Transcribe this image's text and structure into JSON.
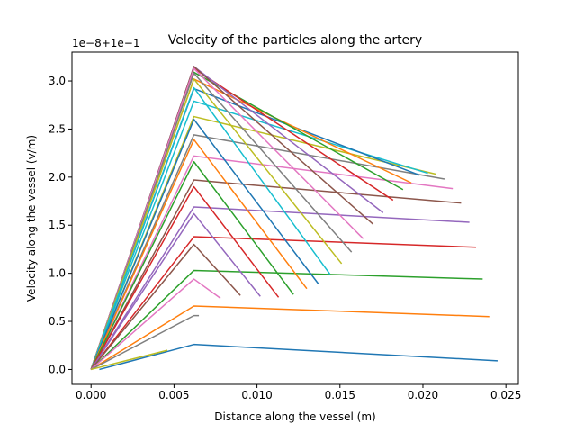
{
  "chart_data": {
    "type": "line",
    "title": "Velocity of the particles along the artery",
    "xlabel": "Distance along the vessel (m)",
    "ylabel": "Velocity along the vessel (v/m)",
    "offset_label": "1e−8+1e−1",
    "xlim": [
      -0.00115,
      0.02575
    ],
    "ylim": [
      -0.155,
      3.3
    ],
    "xticks": [
      0.0,
      0.005,
      0.01,
      0.015,
      0.02,
      0.025
    ],
    "xtick_labels": [
      "0.000",
      "0.005",
      "0.010",
      "0.015",
      "0.020",
      "0.025"
    ],
    "yticks": [
      0.0,
      0.5,
      1.0,
      1.5,
      2.0,
      2.5,
      3.0
    ],
    "ytick_labels": [
      "0.0",
      "0.5",
      "1.0",
      "1.5",
      "2.0",
      "2.5",
      "3.0"
    ],
    "grid": false,
    "series": [
      {
        "color": "#1f77b4",
        "x": [
          0.0005,
          0.0062,
          0.0245
        ],
        "y": [
          0.0,
          0.26,
          0.09
        ]
      },
      {
        "color": "#ff7f0e",
        "x": [
          0.0,
          0.0062,
          0.024
        ],
        "y": [
          0.0,
          0.66,
          0.55
        ]
      },
      {
        "color": "#2ca02c",
        "x": [
          0.0,
          0.0062,
          0.0236
        ],
        "y": [
          0.0,
          1.03,
          0.94
        ]
      },
      {
        "color": "#d62728",
        "x": [
          0.0,
          0.0062,
          0.0232
        ],
        "y": [
          0.0,
          1.38,
          1.27
        ]
      },
      {
        "color": "#9467bd",
        "x": [
          0.0,
          0.0062,
          0.0228
        ],
        "y": [
          0.0,
          1.69,
          1.53
        ]
      },
      {
        "color": "#8c564b",
        "x": [
          0.0,
          0.0062,
          0.0223
        ],
        "y": [
          0.0,
          1.97,
          1.73
        ]
      },
      {
        "color": "#e377c2",
        "x": [
          0.0,
          0.0062,
          0.0218
        ],
        "y": [
          0.0,
          2.22,
          1.88
        ]
      },
      {
        "color": "#7f7f7f",
        "x": [
          0.0,
          0.0062,
          0.0213
        ],
        "y": [
          0.0,
          2.44,
          1.98
        ]
      },
      {
        "color": "#bcbd22",
        "x": [
          0.0,
          0.0062,
          0.0208
        ],
        "y": [
          0.0,
          2.63,
          2.03
        ]
      },
      {
        "color": "#17becf",
        "x": [
          0.0,
          0.0062,
          0.0203
        ],
        "y": [
          0.0,
          2.79,
          2.04
        ]
      },
      {
        "color": "#1f77b4",
        "x": [
          0.0,
          0.0062,
          0.0198
        ],
        "y": [
          0.0,
          2.92,
          2.02
        ]
      },
      {
        "color": "#ff7f0e",
        "x": [
          0.0,
          0.0062,
          0.0193
        ],
        "y": [
          0.0,
          3.02,
          1.94
        ]
      },
      {
        "color": "#2ca02c",
        "x": [
          0.0,
          0.0062,
          0.0188
        ],
        "y": [
          0.0,
          3.09,
          1.87
        ]
      },
      {
        "color": "#d62728",
        "x": [
          0.0,
          0.0062,
          0.0182
        ],
        "y": [
          0.0,
          3.13,
          1.76
        ]
      },
      {
        "color": "#9467bd",
        "x": [
          0.0,
          0.0062,
          0.0176
        ],
        "y": [
          0.0,
          3.15,
          1.63
        ]
      },
      {
        "color": "#8c564b",
        "x": [
          0.0,
          0.0062,
          0.017
        ],
        "y": [
          0.0,
          3.15,
          1.51
        ]
      },
      {
        "color": "#e377c2",
        "x": [
          0.0,
          0.0062,
          0.0164
        ],
        "y": [
          0.0,
          3.13,
          1.36
        ]
      },
      {
        "color": "#7f7f7f",
        "x": [
          0.0,
          0.0062,
          0.0157
        ],
        "y": [
          0.0,
          3.08,
          1.22
        ]
      },
      {
        "color": "#bcbd22",
        "x": [
          0.0,
          0.0062,
          0.0151
        ],
        "y": [
          0.0,
          3.02,
          1.1
        ]
      },
      {
        "color": "#17becf",
        "x": [
          0.0,
          0.0062,
          0.0144
        ],
        "y": [
          0.0,
          2.93,
          0.99
        ]
      },
      {
        "color": "#1f77b4",
        "x": [
          0.0,
          0.0062,
          0.0137
        ],
        "y": [
          0.0,
          2.6,
          0.89
        ]
      },
      {
        "color": "#ff7f0e",
        "x": [
          0.0,
          0.0062,
          0.013
        ],
        "y": [
          0.0,
          2.39,
          0.84
        ]
      },
      {
        "color": "#2ca02c",
        "x": [
          0.0,
          0.0062,
          0.0122
        ],
        "y": [
          0.0,
          2.16,
          0.78
        ]
      },
      {
        "color": "#d62728",
        "x": [
          0.0,
          0.0062,
          0.0113
        ],
        "y": [
          0.0,
          1.9,
          0.75
        ]
      },
      {
        "color": "#9467bd",
        "x": [
          0.0,
          0.0062,
          0.0102
        ],
        "y": [
          0.0,
          1.62,
          0.76
        ]
      },
      {
        "color": "#8c564b",
        "x": [
          0.0,
          0.0062,
          0.009
        ],
        "y": [
          0.0,
          1.3,
          0.77
        ]
      },
      {
        "color": "#e377c2",
        "x": [
          0.0,
          0.0062,
          0.0078
        ],
        "y": [
          0.0,
          0.94,
          0.74
        ]
      },
      {
        "color": "#7f7f7f",
        "x": [
          0.0,
          0.0062,
          0.0065
        ],
        "y": [
          0.0,
          0.56,
          0.56
        ]
      },
      {
        "color": "#bcbd22",
        "x": [
          0.0,
          0.0046
        ],
        "y": [
          0.0,
          0.2
        ]
      }
    ]
  }
}
